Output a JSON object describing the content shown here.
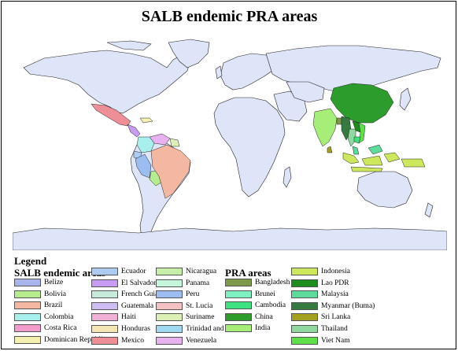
{
  "title": "SALB endemic PRA areas",
  "legend": {
    "title": "Legend",
    "salb_heading": "SALB endemic areas",
    "pra_heading": "PRA areas",
    "salb_columns": [
      [
        {
          "label": "Belize",
          "color": "#a9b4ea"
        },
        {
          "label": "Bolivia",
          "color": "#b5ec8e"
        },
        {
          "label": "Brazil",
          "color": "#f4b8a2"
        },
        {
          "label": "Colombia",
          "color": "#a8f0ee"
        },
        {
          "label": "Costa Rica",
          "color": "#f19ccb"
        },
        {
          "label": "Dominican Republic",
          "color": "#f3f0b0"
        }
      ],
      [
        {
          "label": "Ecuador",
          "color": "#aecbf1"
        },
        {
          "label": "El Salvador",
          "color": "#c79bf2"
        },
        {
          "label": "French Guiana",
          "color": "#c8eadb"
        },
        {
          "label": "Guatemala",
          "color": "#cdbdf3"
        },
        {
          "label": "Haiti",
          "color": "#f1b1d6"
        },
        {
          "label": "Honduras",
          "color": "#f4e5b5"
        },
        {
          "label": "Mexico",
          "color": "#ee8f98"
        }
      ],
      [
        {
          "label": "Nicaragua",
          "color": "#c6eea8"
        },
        {
          "label": "Panama",
          "color": "#c2f5db"
        },
        {
          "label": "Peru",
          "color": "#9cbdf1"
        },
        {
          "label": "St. Lucia",
          "color": "#f4c2c2"
        },
        {
          "label": "Suriname",
          "color": "#dcf0b5"
        },
        {
          "label": "Trinidad and Tobago",
          "color": "#9ed8f1"
        },
        {
          "label": "Venezuela",
          "color": "#e8b2f1"
        }
      ]
    ],
    "pra_columns": [
      [
        {
          "label": "Bangladesh",
          "color": "#7e9a48"
        },
        {
          "label": "Brunei",
          "color": "#7df0bf"
        },
        {
          "label": "Cambodia",
          "color": "#3ee27e"
        },
        {
          "label": "China",
          "color": "#2c9c2c"
        },
        {
          "label": "India",
          "color": "#a6ee78"
        }
      ],
      [
        {
          "label": "Indonesia",
          "color": "#cde85c"
        },
        {
          "label": "Lao PDR",
          "color": "#1c8c1c"
        },
        {
          "label": "Malaysia",
          "color": "#5edb9a"
        },
        {
          "label": "Myanmar (Buma)",
          "color": "#357a40"
        },
        {
          "label": "Sri Lanka",
          "color": "#a4a020"
        },
        {
          "label": "Thailand",
          "color": "#8fd8a0"
        },
        {
          "label": "Viet Nam",
          "color": "#5fe04a"
        }
      ]
    ]
  },
  "map_colors": {
    "land": "#dfe5f8",
    "border": "#222222"
  }
}
